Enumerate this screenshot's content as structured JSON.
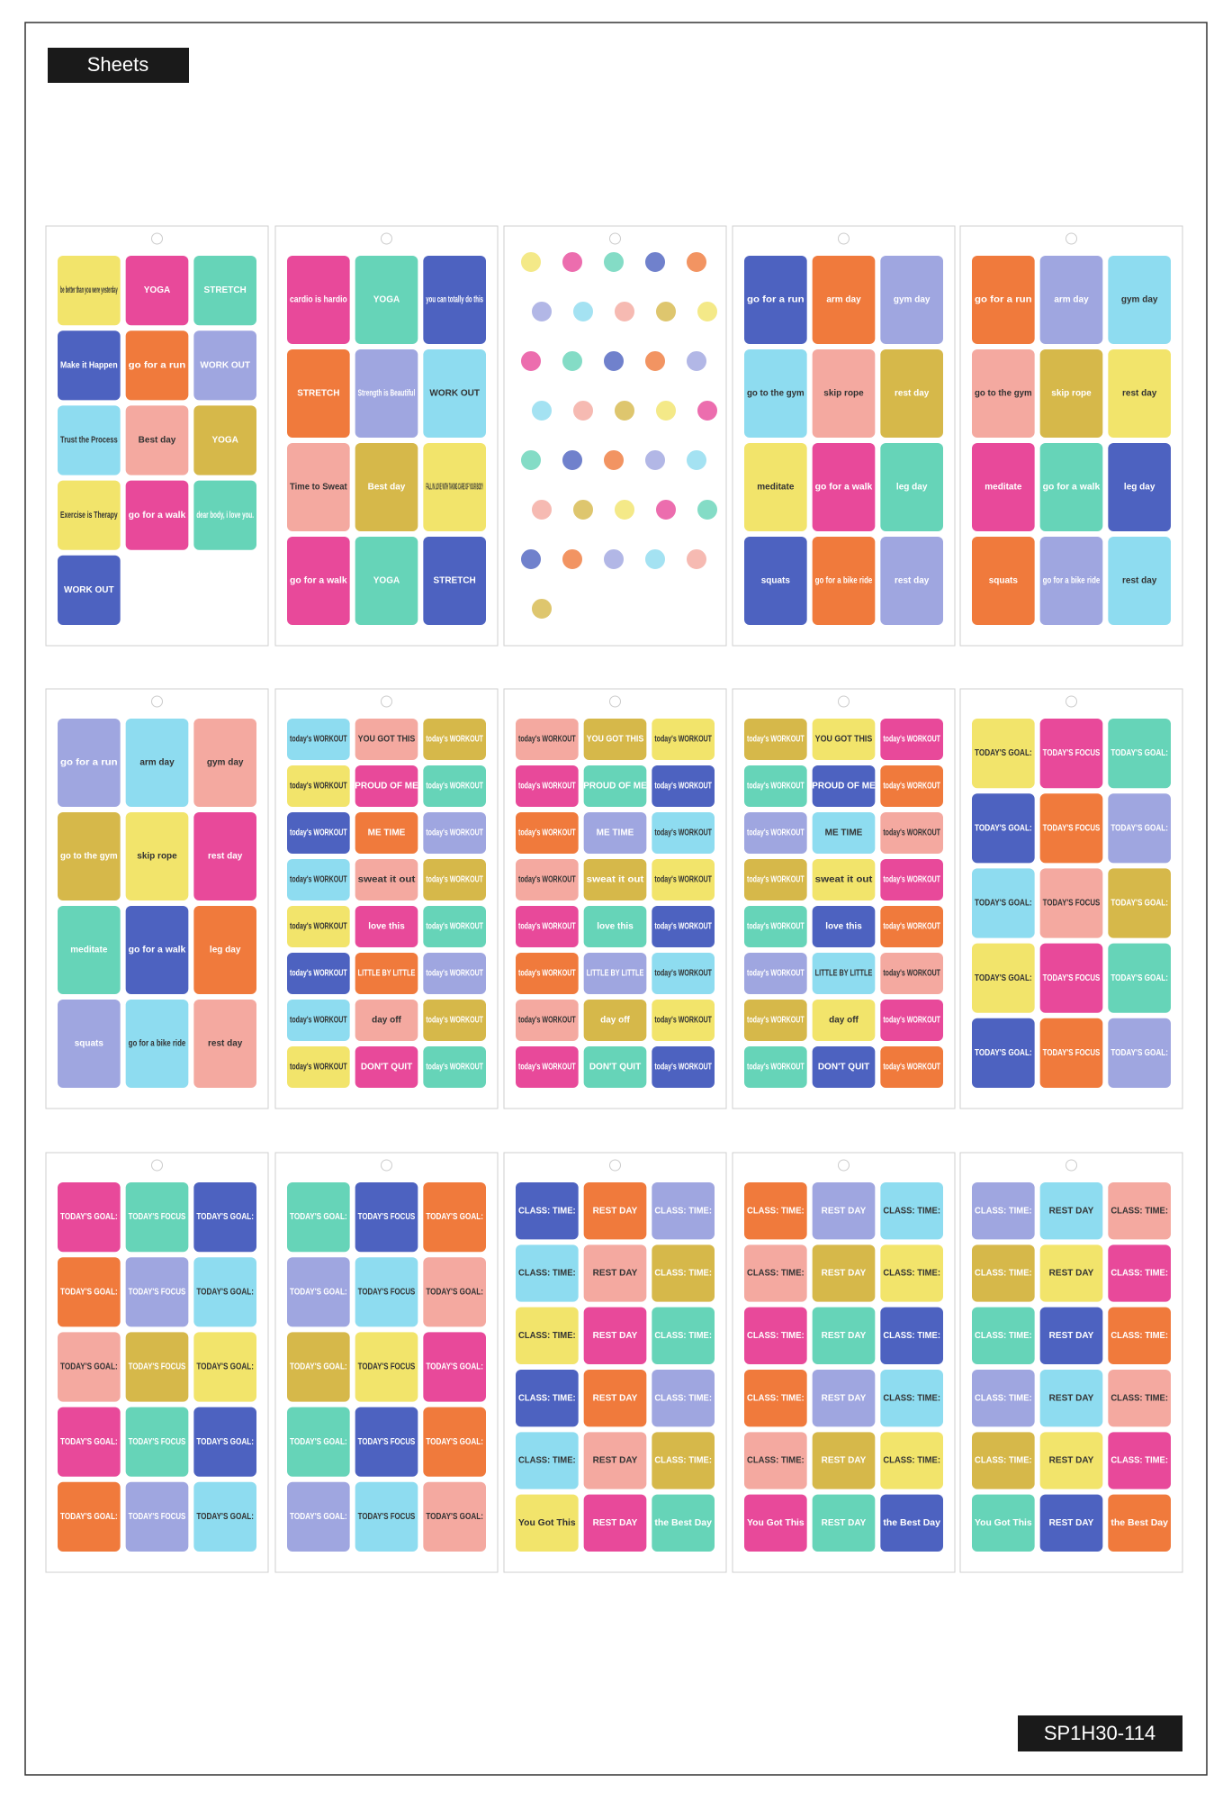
{
  "header": {
    "label": "Sheets"
  },
  "sheets": [
    {
      "stickers": [
        "be better than you were yesterday",
        "YOGA",
        "STRETCH",
        "Make it Happen",
        "go for a run",
        "WORK OUT",
        "Trust the Process",
        "Best day",
        "YOGA",
        "Exercise is Therapy",
        "go for a walk",
        "dear body, i love you.",
        "WORK OUT"
      ]
    },
    {
      "stickers": [
        "cardio is hardio",
        "YOGA",
        "you can totally do this",
        "STRETCH",
        "Strength is Beautiful",
        "WORK OUT",
        "Time to Sweat",
        "Best day",
        "FALL IN LOVE WITH TAKING CARE OF YOUR BODY",
        "go for a walk",
        "YOGA",
        "STRETCH"
      ]
    },
    {
      "stickers": []
    },
    {
      "stickers": [
        "go for a run",
        "arm day",
        "gym day",
        "go to the gym",
        "skip rope",
        "rest day",
        "meditate",
        "go for a walk",
        "leg day",
        "squats",
        "go for a bike ride",
        "rest day"
      ]
    },
    {
      "stickers": [
        "go for a run",
        "arm day",
        "gym day",
        "go to the gym",
        "skip rope",
        "rest day",
        "meditate",
        "go for a walk",
        "leg day",
        "squats",
        "go for a bike ride",
        "rest day"
      ]
    },
    {
      "stickers": [
        "go for a run",
        "arm day",
        "gym day",
        "go to the gym",
        "skip rope",
        "rest day",
        "meditate",
        "go for a walk",
        "leg day",
        "squats",
        "go for a bike ride",
        "rest day"
      ]
    },
    {
      "stickers": [
        "today's WORKOUT",
        "YOU GOT THIS",
        "today's WORKOUT",
        "today's WORKOUT",
        "PROUD OF ME",
        "today's WORKOUT",
        "today's WORKOUT",
        "ME TIME",
        "today's WORKOUT",
        "today's WORKOUT",
        "sweat it out",
        "today's WORKOUT",
        "today's WORKOUT",
        "love this",
        "today's WORKOUT",
        "today's WORKOUT",
        "LITTLE BY LITTLE",
        "today's WORKOUT",
        "today's WORKOUT",
        "day off",
        "today's WORKOUT",
        "today's WORKOUT",
        "DON'T QUIT",
        "today's WORKOUT"
      ]
    },
    {
      "stickers": [
        "today's WORKOUT",
        "YOU GOT THIS",
        "today's WORKOUT",
        "today's WORKOUT",
        "PROUD OF ME",
        "today's WORKOUT",
        "today's WORKOUT",
        "ME TIME",
        "today's WORKOUT",
        "today's WORKOUT",
        "sweat it out",
        "today's WORKOUT",
        "today's WORKOUT",
        "love this",
        "today's WORKOUT",
        "today's WORKOUT",
        "LITTLE BY LITTLE",
        "today's WORKOUT",
        "today's WORKOUT",
        "day off",
        "today's WORKOUT",
        "today's WORKOUT",
        "DON'T QUIT",
        "today's WORKOUT"
      ]
    },
    {
      "stickers": [
        "today's WORKOUT",
        "YOU GOT THIS",
        "today's WORKOUT",
        "today's WORKOUT",
        "PROUD OF ME",
        "today's WORKOUT",
        "today's WORKOUT",
        "ME TIME",
        "today's WORKOUT",
        "today's WORKOUT",
        "sweat it out",
        "today's WORKOUT",
        "today's WORKOUT",
        "love this",
        "today's WORKOUT",
        "today's WORKOUT",
        "LITTLE BY LITTLE",
        "today's WORKOUT",
        "today's WORKOUT",
        "day off",
        "today's WORKOUT",
        "today's WORKOUT",
        "DON'T QUIT",
        "today's WORKOUT"
      ]
    },
    {
      "stickers": [
        "TODAY'S GOAL:",
        "TODAY'S FOCUS",
        "TODAY'S GOAL:",
        "TODAY'S GOAL:",
        "TODAY'S FOCUS",
        "TODAY'S GOAL:",
        "TODAY'S GOAL:",
        "TODAY'S FOCUS",
        "TODAY'S GOAL:",
        "TODAY'S GOAL:",
        "TODAY'S FOCUS",
        "TODAY'S GOAL:",
        "TODAY'S GOAL:",
        "TODAY'S FOCUS",
        "TODAY'S GOAL:"
      ]
    },
    {
      "stickers": [
        "TODAY'S GOAL:",
        "TODAY'S FOCUS",
        "TODAY'S GOAL:",
        "TODAY'S GOAL:",
        "TODAY'S FOCUS",
        "TODAY'S GOAL:",
        "TODAY'S GOAL:",
        "TODAY'S FOCUS",
        "TODAY'S GOAL:",
        "TODAY'S GOAL:",
        "TODAY'S FOCUS",
        "TODAY'S GOAL:",
        "TODAY'S GOAL:",
        "TODAY'S FOCUS",
        "TODAY'S GOAL:"
      ]
    },
    {
      "stickers": [
        "TODAY'S GOAL:",
        "TODAY'S FOCUS",
        "TODAY'S GOAL:",
        "TODAY'S GOAL:",
        "TODAY'S FOCUS",
        "TODAY'S GOAL:",
        "TODAY'S GOAL:",
        "TODAY'S FOCUS",
        "TODAY'S GOAL:",
        "TODAY'S GOAL:",
        "TODAY'S FOCUS",
        "TODAY'S GOAL:",
        "TODAY'S GOAL:",
        "TODAY'S FOCUS",
        "TODAY'S GOAL:"
      ]
    },
    {
      "stickers": [
        "CLASS: TIME:",
        "REST DAY",
        "CLASS: TIME:",
        "CLASS: TIME:",
        "REST DAY",
        "CLASS: TIME:",
        "CLASS: TIME:",
        "REST DAY",
        "CLASS: TIME:",
        "CLASS: TIME:",
        "REST DAY",
        "CLASS: TIME:",
        "CLASS: TIME:",
        "REST DAY",
        "CLASS: TIME:",
        "You Got This",
        "REST DAY",
        "the Best Day"
      ]
    },
    {
      "stickers": [
        "CLASS: TIME:",
        "REST DAY",
        "CLASS: TIME:",
        "CLASS: TIME:",
        "REST DAY",
        "CLASS: TIME:",
        "CLASS: TIME:",
        "REST DAY",
        "CLASS: TIME:",
        "CLASS: TIME:",
        "REST DAY",
        "CLASS: TIME:",
        "CLASS: TIME:",
        "REST DAY",
        "CLASS: TIME:",
        "You Got This",
        "REST DAY",
        "the Best Day"
      ]
    },
    {
      "stickers": [
        "CLASS: TIME:",
        "REST DAY",
        "CLASS: TIME:",
        "CLASS: TIME:",
        "REST DAY",
        "CLASS: TIME:",
        "CLASS: TIME:",
        "REST DAY",
        "CLASS: TIME:",
        "CLASS: TIME:",
        "REST DAY",
        "CLASS: TIME:",
        "CLASS: TIME:",
        "REST DAY",
        "CLASS: TIME:",
        "You Got This",
        "REST DAY",
        "the Best Day"
      ]
    }
  ],
  "footer": {
    "code": "SP1H30-114"
  }
}
